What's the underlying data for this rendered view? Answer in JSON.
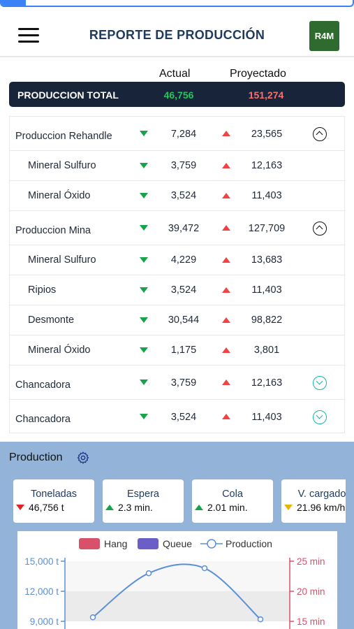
{
  "progress": {
    "fraction": 0.07,
    "color": "#3b82f6"
  },
  "header": {
    "title": "REPORTE DE PRODUCCIÓN",
    "logo_text": "R4M",
    "menu_icon": "hamburger-icon"
  },
  "columns": {
    "actual": "Actual",
    "projected": "Proyectado"
  },
  "total": {
    "label": "PRODUCCION TOTAL",
    "actual": "46,756",
    "projected": "151,274"
  },
  "rows": [
    {
      "name": "Produccion Rehandle",
      "type": "parent",
      "actual": "7,284",
      "projected": "23,565",
      "toggle": "up"
    },
    {
      "name": "Mineral Sulfuro",
      "type": "child",
      "actual": "3,759",
      "projected": "12,163"
    },
    {
      "name": "Mineral Óxido",
      "type": "child",
      "actual": "3,524",
      "projected": "11,403"
    },
    {
      "name": "Produccion Mina",
      "type": "parent",
      "actual": "39,472",
      "projected": "127,709",
      "toggle": "up"
    },
    {
      "name": "Mineral Sulfuro",
      "type": "child",
      "actual": "4,229",
      "projected": "13,683"
    },
    {
      "name": "Ripios",
      "type": "child",
      "actual": "3,524",
      "projected": "11,403"
    },
    {
      "name": "Desmonte",
      "type": "child",
      "actual": "30,544",
      "projected": "98,822"
    },
    {
      "name": "Mineral Óxido",
      "type": "child",
      "actual": "1,175",
      "projected": "3,801"
    },
    {
      "name": "Chancadora",
      "type": "parent",
      "actual": "3,759",
      "projected": "12,163",
      "toggle": "down"
    },
    {
      "name": "Chancadora",
      "type": "parent",
      "actual": "3,524",
      "projected": "11,403",
      "toggle": "down"
    }
  ],
  "production": {
    "title": "Production",
    "settings_icon": "gear-icon",
    "kpis": [
      {
        "title": "Toneladas",
        "value": "46,756 t",
        "trend": "down"
      },
      {
        "title": "Espera",
        "value": "2.3 min.",
        "trend": "up"
      },
      {
        "title": "Cola",
        "value": "2.01 min.",
        "trend": "up"
      },
      {
        "title": "V. cargado",
        "value": "21.96 km/h",
        "trend": "warn"
      }
    ]
  },
  "chart_data": {
    "type": "line",
    "legend": [
      "Hang",
      "Queue",
      "Production"
    ],
    "legend_colors": [
      "#d9506b",
      "#6b5fc7",
      "#5b8fd9"
    ],
    "legend_placement": "top",
    "y_left_ticks": [
      "15,000 t",
      "12,000 t",
      "9,000 t"
    ],
    "y_left_tick_values": [
      15000,
      12000,
      9000
    ],
    "y_right_ticks": [
      "25 min",
      "20 min",
      "15 min"
    ],
    "y_right_tick_values": [
      25,
      20,
      15
    ],
    "series": [
      {
        "name": "Production",
        "values": [
          9400,
          13800,
          14300,
          9200
        ]
      }
    ]
  }
}
